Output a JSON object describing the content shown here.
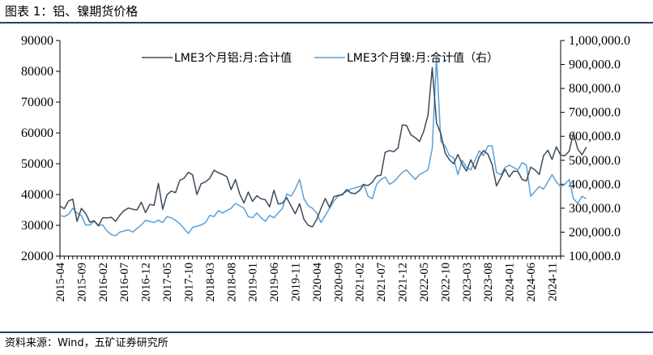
{
  "title": "图表 1：铝、镍期货价格",
  "source": "资料来源：Wind，五矿证券研究所",
  "chart_data": {
    "type": "line",
    "x_ticks": [
      "2015-04",
      "2015-09",
      "2016-02",
      "2016-07",
      "2016-12",
      "2017-05",
      "2017-10",
      "2018-03",
      "2018-08",
      "2019-01",
      "2019-06",
      "2019-11",
      "2020-04",
      "2020-09",
      "2021-02",
      "2021-07",
      "2021-12",
      "2022-05",
      "2022-10",
      "2023-03",
      "2023-08",
      "2024-01",
      "2024-06",
      "2024-11"
    ],
    "x_start": "2015-04",
    "x_end": "2025-01",
    "y_left": {
      "min": 20000,
      "max": 90000,
      "ticks": [
        "20000",
        "30000",
        "40000",
        "50000",
        "60000",
        "70000",
        "80000",
        "90000"
      ]
    },
    "y_right": {
      "min": 100000,
      "max": 1000000,
      "ticks": [
        "100,000.0",
        "200,000.0",
        "300,000.0",
        "400,000.0",
        "500,000.0",
        "600,000.0",
        "700,000.0",
        "800,000.0",
        "900,000.0",
        "1,000,000.0"
      ]
    },
    "legend_position": "top-center",
    "grid": false,
    "series": [
      {
        "name": "LME3个月铝:月:合计值",
        "axis": "left",
        "color": "#3e4a5a",
        "values": [
          36200,
          35400,
          37900,
          38500,
          31300,
          35500,
          33900,
          31000,
          31500,
          29800,
          32500,
          32400,
          32600,
          31300,
          33300,
          34800,
          35600,
          35200,
          35000,
          37500,
          34100,
          36800,
          36500,
          43600,
          35200,
          39900,
          41100,
          40600,
          44600,
          45300,
          47200,
          46400,
          40000,
          43500,
          44100,
          45300,
          47900,
          47100,
          46500,
          45800,
          41600,
          44900,
          40200,
          37300,
          40800,
          37800,
          39600,
          38600,
          38300,
          36000,
          41400,
          36900,
          37200,
          39000,
          36300,
          33800,
          37000,
          32000,
          30000,
          29500,
          31900,
          35500,
          38700,
          35800,
          39300,
          39700,
          39900,
          41600,
          40500,
          40300,
          41300,
          43200,
          42900,
          44000,
          46000,
          46300,
          53700,
          54300,
          53900,
          55100,
          62600,
          62400,
          59400,
          58500,
          57200,
          60500,
          65800,
          81200,
          63300,
          59800,
          53500,
          51300,
          50000,
          53000,
          49800,
          47600,
          51300,
          48300,
          52300,
          54300,
          53100,
          49700,
          42800,
          45500,
          48200,
          45700,
          47600,
          47500,
          44900,
          44400,
          48900,
          48000,
          46500,
          52600,
          54400,
          51400,
          55500,
          52800,
          52600,
          54100,
          60000,
          54800,
          52900,
          55400
        ]
      },
      {
        "name": "LME3个月镍:月:合计值（右）",
        "axis": "right",
        "color": "#5aa0d8",
        "values": [
          270000,
          265000,
          275000,
          300000,
          280000,
          270000,
          230000,
          230000,
          245000,
          230000,
          230000,
          205000,
          190000,
          185000,
          200000,
          205000,
          210000,
          200000,
          215000,
          230000,
          250000,
          245000,
          240000,
          250000,
          240000,
          265000,
          260000,
          250000,
          235000,
          215000,
          195000,
          220000,
          225000,
          230000,
          240000,
          270000,
          265000,
          290000,
          280000,
          290000,
          300000,
          320000,
          310000,
          300000,
          265000,
          260000,
          280000,
          260000,
          245000,
          270000,
          260000,
          280000,
          300000,
          360000,
          350000,
          380000,
          420000,
          340000,
          310000,
          300000,
          280000,
          240000,
          270000,
          300000,
          330000,
          350000,
          360000,
          370000,
          380000,
          385000,
          390000,
          400000,
          350000,
          340000,
          400000,
          420000,
          430000,
          400000,
          410000,
          430000,
          450000,
          460000,
          440000,
          420000,
          440000,
          450000,
          460000,
          550000,
          930000,
          580000,
          560000,
          520000,
          510000,
          440000,
          500000,
          470000,
          460000,
          500000,
          540000,
          520000,
          560000,
          560000,
          450000,
          440000,
          470000,
          480000,
          470000,
          460000,
          490000,
          480000,
          350000,
          370000,
          390000,
          380000,
          410000,
          440000,
          410000,
          390000,
          400000,
          420000,
          340000,
          320000,
          350000,
          340000
        ]
      }
    ]
  }
}
